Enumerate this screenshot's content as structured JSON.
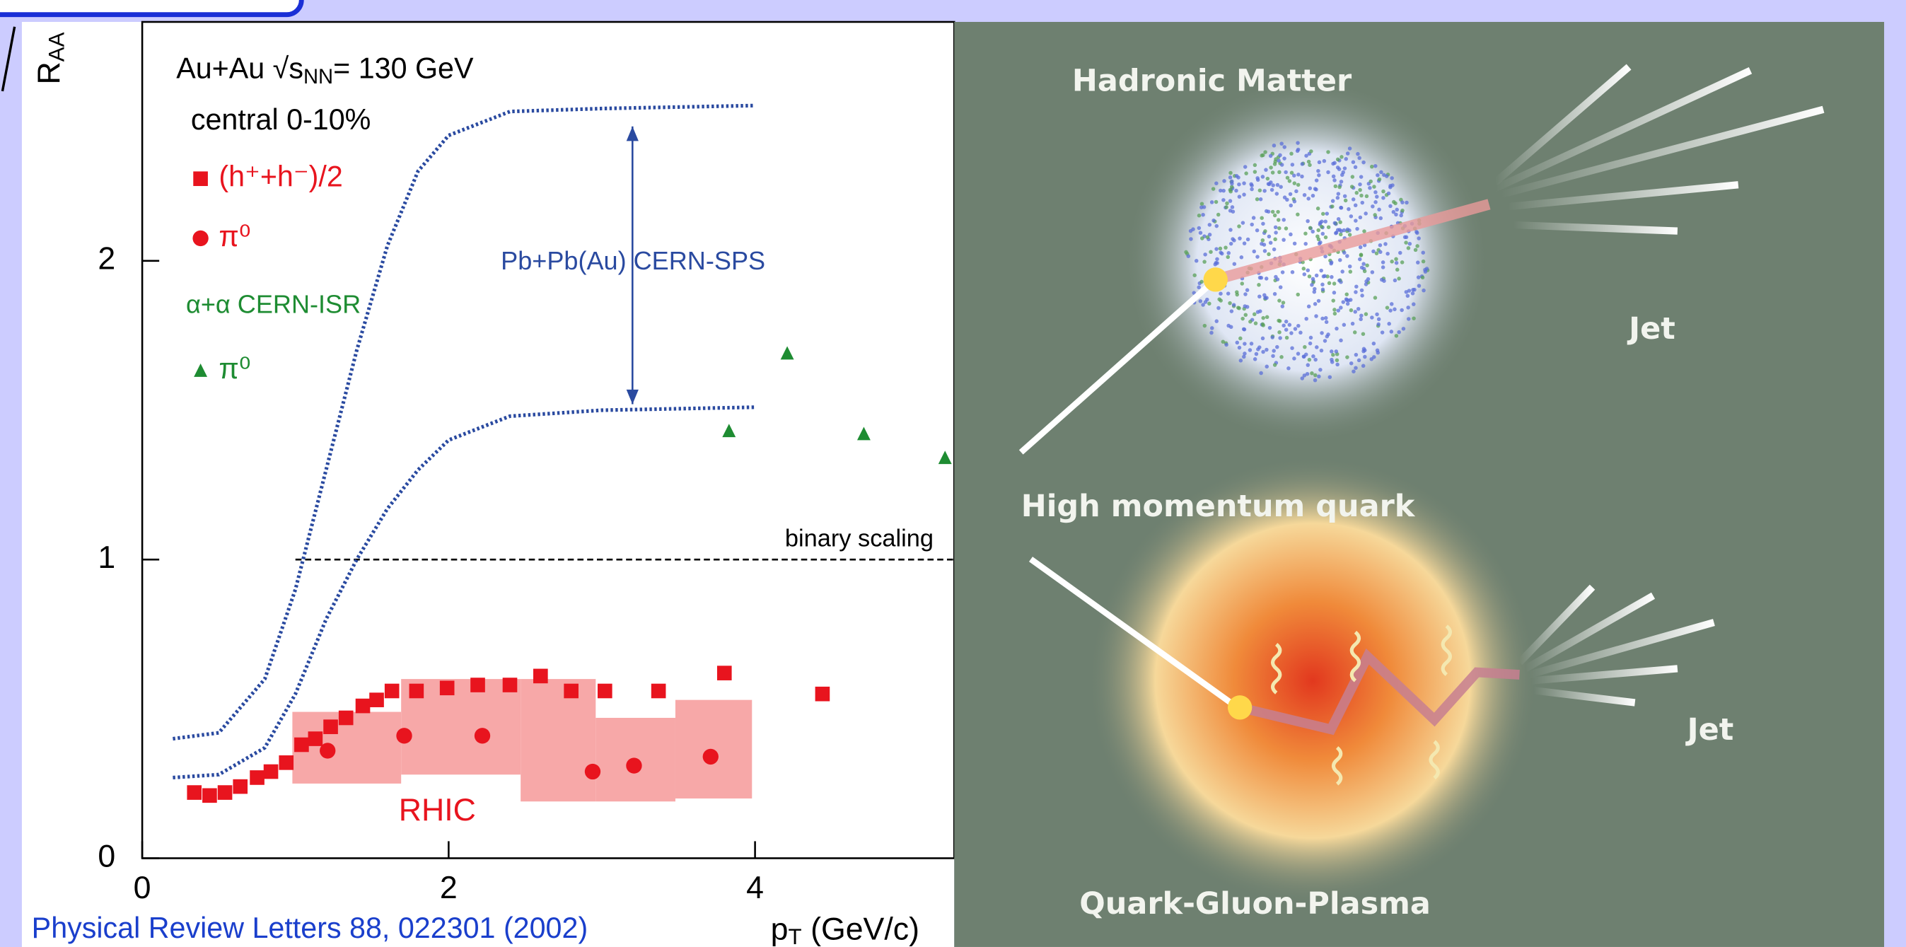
{
  "slide": {
    "citation": "Physical Review Letters 88, 022301 (2002)"
  },
  "chart_data": {
    "type": "scatter",
    "system": {
      "pre": "Au+Au √s",
      "sub": "NN",
      "post": "= 130 GeV"
    },
    "centrality": "central 0-10%",
    "group_label": "α+α CERN-ISR",
    "sps_label": "Pb+Pb(Au) CERN-SPS",
    "reference_label": "binary scaling",
    "band_label": "RHIC",
    "xlabel": {
      "main": "p",
      "sub": "T",
      "post": " (GeV/c)"
    },
    "ylabel": {
      "main": "R",
      "sub": "AA"
    },
    "xlim": [
      0,
      5.3
    ],
    "ylim": [
      0,
      2.8
    ],
    "xticks": [
      0,
      2,
      4
    ],
    "yticks": [
      0,
      1,
      2
    ],
    "series": [
      {
        "name": "(h⁺+h⁻)/2",
        "color": "#e8141e",
        "marker": "square",
        "x": [
          0.34,
          0.44,
          0.54,
          0.64,
          0.75,
          0.84,
          0.94,
          1.04,
          1.13,
          1.23,
          1.33,
          1.44,
          1.53,
          1.63,
          1.79,
          1.99,
          2.19,
          2.4,
          2.6,
          2.8,
          3.02,
          3.37,
          3.8,
          4.44
        ],
        "values": [
          0.22,
          0.21,
          0.22,
          0.24,
          0.27,
          0.29,
          0.32,
          0.38,
          0.4,
          0.44,
          0.47,
          0.51,
          0.53,
          0.56,
          0.56,
          0.57,
          0.58,
          0.58,
          0.61,
          0.56,
          0.56,
          0.56,
          0.62,
          0.55
        ]
      },
      {
        "name": "π⁰",
        "color": "#e8141e",
        "marker": "circle",
        "x": [
          1.21,
          1.71,
          2.22,
          2.94,
          3.21,
          3.71
        ],
        "values": [
          0.36,
          0.41,
          0.41,
          0.29,
          0.31,
          0.34
        ]
      },
      {
        "name": "π⁰",
        "color": "#1e8c32",
        "marker": "triangle",
        "x": [
          3.83,
          4.21,
          4.71,
          5.24
        ],
        "values": [
          1.43,
          1.69,
          1.42,
          1.34
        ]
      }
    ],
    "curves": [
      {
        "color": "#2a4aa0",
        "x": [
          0.2,
          0.5,
          0.8,
          1.0,
          1.2,
          1.4,
          1.6,
          1.8,
          2.0,
          2.4,
          3.0,
          4.0
        ],
        "y": [
          0.4,
          0.42,
          0.6,
          0.9,
          1.3,
          1.7,
          2.05,
          2.3,
          2.42,
          2.5,
          2.51,
          2.52
        ]
      },
      {
        "color": "#2a4aa0",
        "x": [
          0.2,
          0.5,
          0.8,
          1.0,
          1.2,
          1.4,
          1.6,
          1.8,
          2.0,
          2.4,
          3.0,
          4.0
        ],
        "y": [
          0.27,
          0.28,
          0.37,
          0.55,
          0.8,
          1.0,
          1.17,
          1.3,
          1.4,
          1.48,
          1.5,
          1.51
        ]
      }
    ],
    "arrow": {
      "x": 3.2,
      "y": [
        1.52,
        2.45
      ]
    },
    "reference": {
      "y": 1,
      "x0": 1
    },
    "band": {
      "color": "#f7a8a8",
      "x0": [
        0.98,
        1.69,
        2.47,
        2.96,
        3.48
      ],
      "x1": [
        1.69,
        2.47,
        2.96,
        3.48,
        3.98
      ],
      "low": [
        0.25,
        0.28,
        0.19,
        0.19,
        0.2
      ],
      "high": [
        0.49,
        0.6,
        0.6,
        0.47,
        0.53
      ]
    }
  },
  "illustration": {
    "top_label": "Hadronic Matter",
    "top_jet": "Jet",
    "quark_label": "High momentum quark",
    "bottom_jet": "Jet",
    "bottom_label": "Quark-Gluon-Plasma"
  }
}
